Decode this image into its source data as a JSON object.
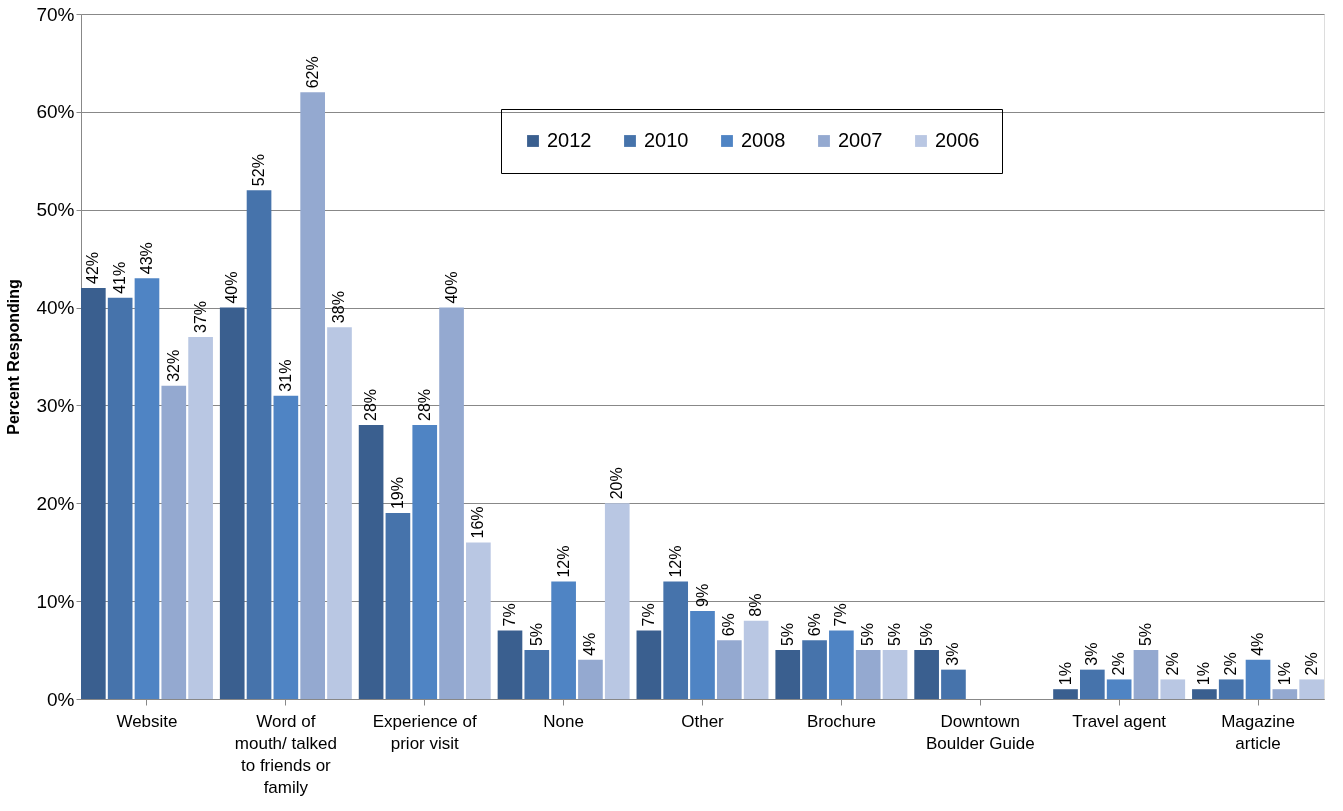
{
  "chart_data": {
    "type": "bar",
    "ylabel": "Percent Responding",
    "categories": [
      "Website",
      "Word of mouth/ talked to friends or family",
      "Experience of prior visit",
      "None",
      "Other",
      "Brochure",
      "Downtown Boulder Guide",
      "Travel agent",
      "Magazine article"
    ],
    "series": [
      {
        "name": "2012",
        "color": "#3a5f8f",
        "values": [
          42,
          40,
          28,
          7,
          7,
          5,
          5,
          1,
          1
        ]
      },
      {
        "name": "2010",
        "color": "#4673ab",
        "values": [
          41,
          52,
          19,
          5,
          12,
          6,
          3,
          3,
          2
        ]
      },
      {
        "name": "2008",
        "color": "#4f84c4",
        "values": [
          43,
          31,
          28,
          12,
          9,
          7,
          null,
          2,
          4
        ]
      },
      {
        "name": "2007",
        "color": "#94a9d0",
        "values": [
          32,
          62,
          40,
          4,
          6,
          5,
          null,
          5,
          1
        ]
      },
      {
        "name": "2006",
        "color": "#b9c7e3",
        "values": [
          37,
          38,
          16,
          20,
          8,
          5,
          null,
          2,
          2
        ]
      }
    ],
    "ylim": [
      0,
      70
    ],
    "yticks": [
      {
        "value": 0,
        "label": "0%"
      },
      {
        "value": 10,
        "label": "10%"
      },
      {
        "value": 20,
        "label": "20%"
      },
      {
        "value": 30,
        "label": "30%"
      },
      {
        "value": 40,
        "label": "40%"
      },
      {
        "value": 50,
        "label": "50%"
      },
      {
        "value": 60,
        "label": "60%"
      },
      {
        "value": 70,
        "label": "70%"
      }
    ],
    "value_labels": [
      [
        "42%",
        "40%",
        "28%",
        "7%",
        "7%",
        "5%",
        "5%",
        "1%",
        "1%"
      ],
      [
        "41%",
        "52%",
        "19%",
        "5%",
        "12%",
        "6%",
        "3%",
        "3%",
        "2%"
      ],
      [
        "43%",
        "31%",
        "28%",
        "12%",
        "9%",
        "7%",
        null,
        "2%",
        "4%"
      ],
      [
        "32%",
        "62%",
        "40%",
        "4%",
        "6%",
        "5%",
        null,
        "5%",
        "1%"
      ],
      [
        "37%",
        "38%",
        "16%",
        "20%",
        "8%",
        "5%",
        null,
        "2%",
        "2%"
      ]
    ],
    "grid": "y",
    "legend": "top"
  }
}
